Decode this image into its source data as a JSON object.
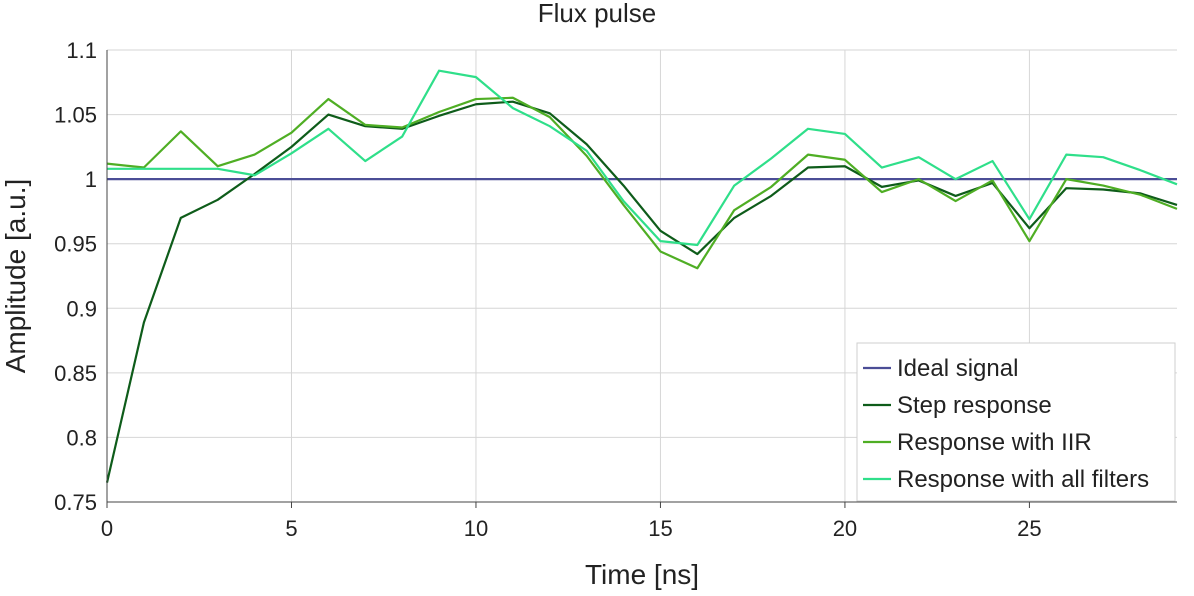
{
  "chart_data": {
    "type": "line",
    "title": "Flux pulse",
    "xlabel": "Time [ns]",
    "ylabel": "Amplitude [a.u.]",
    "xlim": [
      0,
      29
    ],
    "ylim": [
      0.75,
      1.1
    ],
    "x_ticks": [
      0,
      5,
      10,
      15,
      20,
      25
    ],
    "x_tick_labels": [
      "0",
      "5",
      "10",
      "15",
      "20",
      "25"
    ],
    "y_ticks": [
      0.75,
      0.8,
      0.85,
      0.9,
      0.95,
      1,
      1.05,
      1.1
    ],
    "y_tick_labels": [
      "0.75",
      "0.8",
      "0.85",
      "0.9",
      "0.95",
      "1",
      "1.05",
      "1.1"
    ],
    "grid": true,
    "legend_position": "bottom-right",
    "x": [
      0,
      1,
      2,
      3,
      4,
      5,
      6,
      7,
      8,
      9,
      10,
      11,
      12,
      13,
      14,
      15,
      16,
      17,
      18,
      19,
      20,
      21,
      22,
      23,
      24,
      25,
      26,
      27,
      28,
      29
    ],
    "series": [
      {
        "name": "Ideal signal",
        "color": "#4b4d96",
        "values": [
          1,
          1,
          1,
          1,
          1,
          1,
          1,
          1,
          1,
          1,
          1,
          1,
          1,
          1,
          1,
          1,
          1,
          1,
          1,
          1,
          1,
          1,
          1,
          1,
          1,
          1,
          1,
          1,
          1,
          1
        ]
      },
      {
        "name": "Step response",
        "color": "#0e5c1a",
        "values": [
          0.765,
          0.889,
          0.97,
          0.984,
          1.004,
          1.025,
          1.05,
          1.041,
          1.039,
          1.049,
          1.058,
          1.06,
          1.051,
          1.027,
          0.995,
          0.96,
          0.942,
          0.97,
          0.987,
          1.009,
          1.01,
          0.994,
          0.999,
          0.987,
          0.997,
          0.962,
          0.993,
          0.992,
          0.989,
          0.98
        ]
      },
      {
        "name": "Response with IIR",
        "color": "#4fae24",
        "values": [
          1.012,
          1.009,
          1.037,
          1.01,
          1.019,
          1.036,
          1.062,
          1.042,
          1.04,
          1.052,
          1.062,
          1.063,
          1.048,
          1.018,
          0.98,
          0.944,
          0.931,
          0.976,
          0.994,
          1.019,
          1.015,
          0.99,
          1.0,
          0.983,
          0.999,
          0.952,
          1.0,
          0.995,
          0.988,
          0.977
        ]
      },
      {
        "name": "Response with all filters",
        "color": "#2fdf8a",
        "values": [
          1.008,
          1.008,
          1.008,
          1.008,
          1.003,
          1.02,
          1.039,
          1.014,
          1.033,
          1.084,
          1.079,
          1.055,
          1.041,
          1.022,
          0.983,
          0.952,
          0.949,
          0.995,
          1.016,
          1.039,
          1.035,
          1.009,
          1.017,
          1.0,
          1.014,
          0.969,
          1.019,
          1.017,
          1.007,
          0.996
        ]
      }
    ]
  }
}
